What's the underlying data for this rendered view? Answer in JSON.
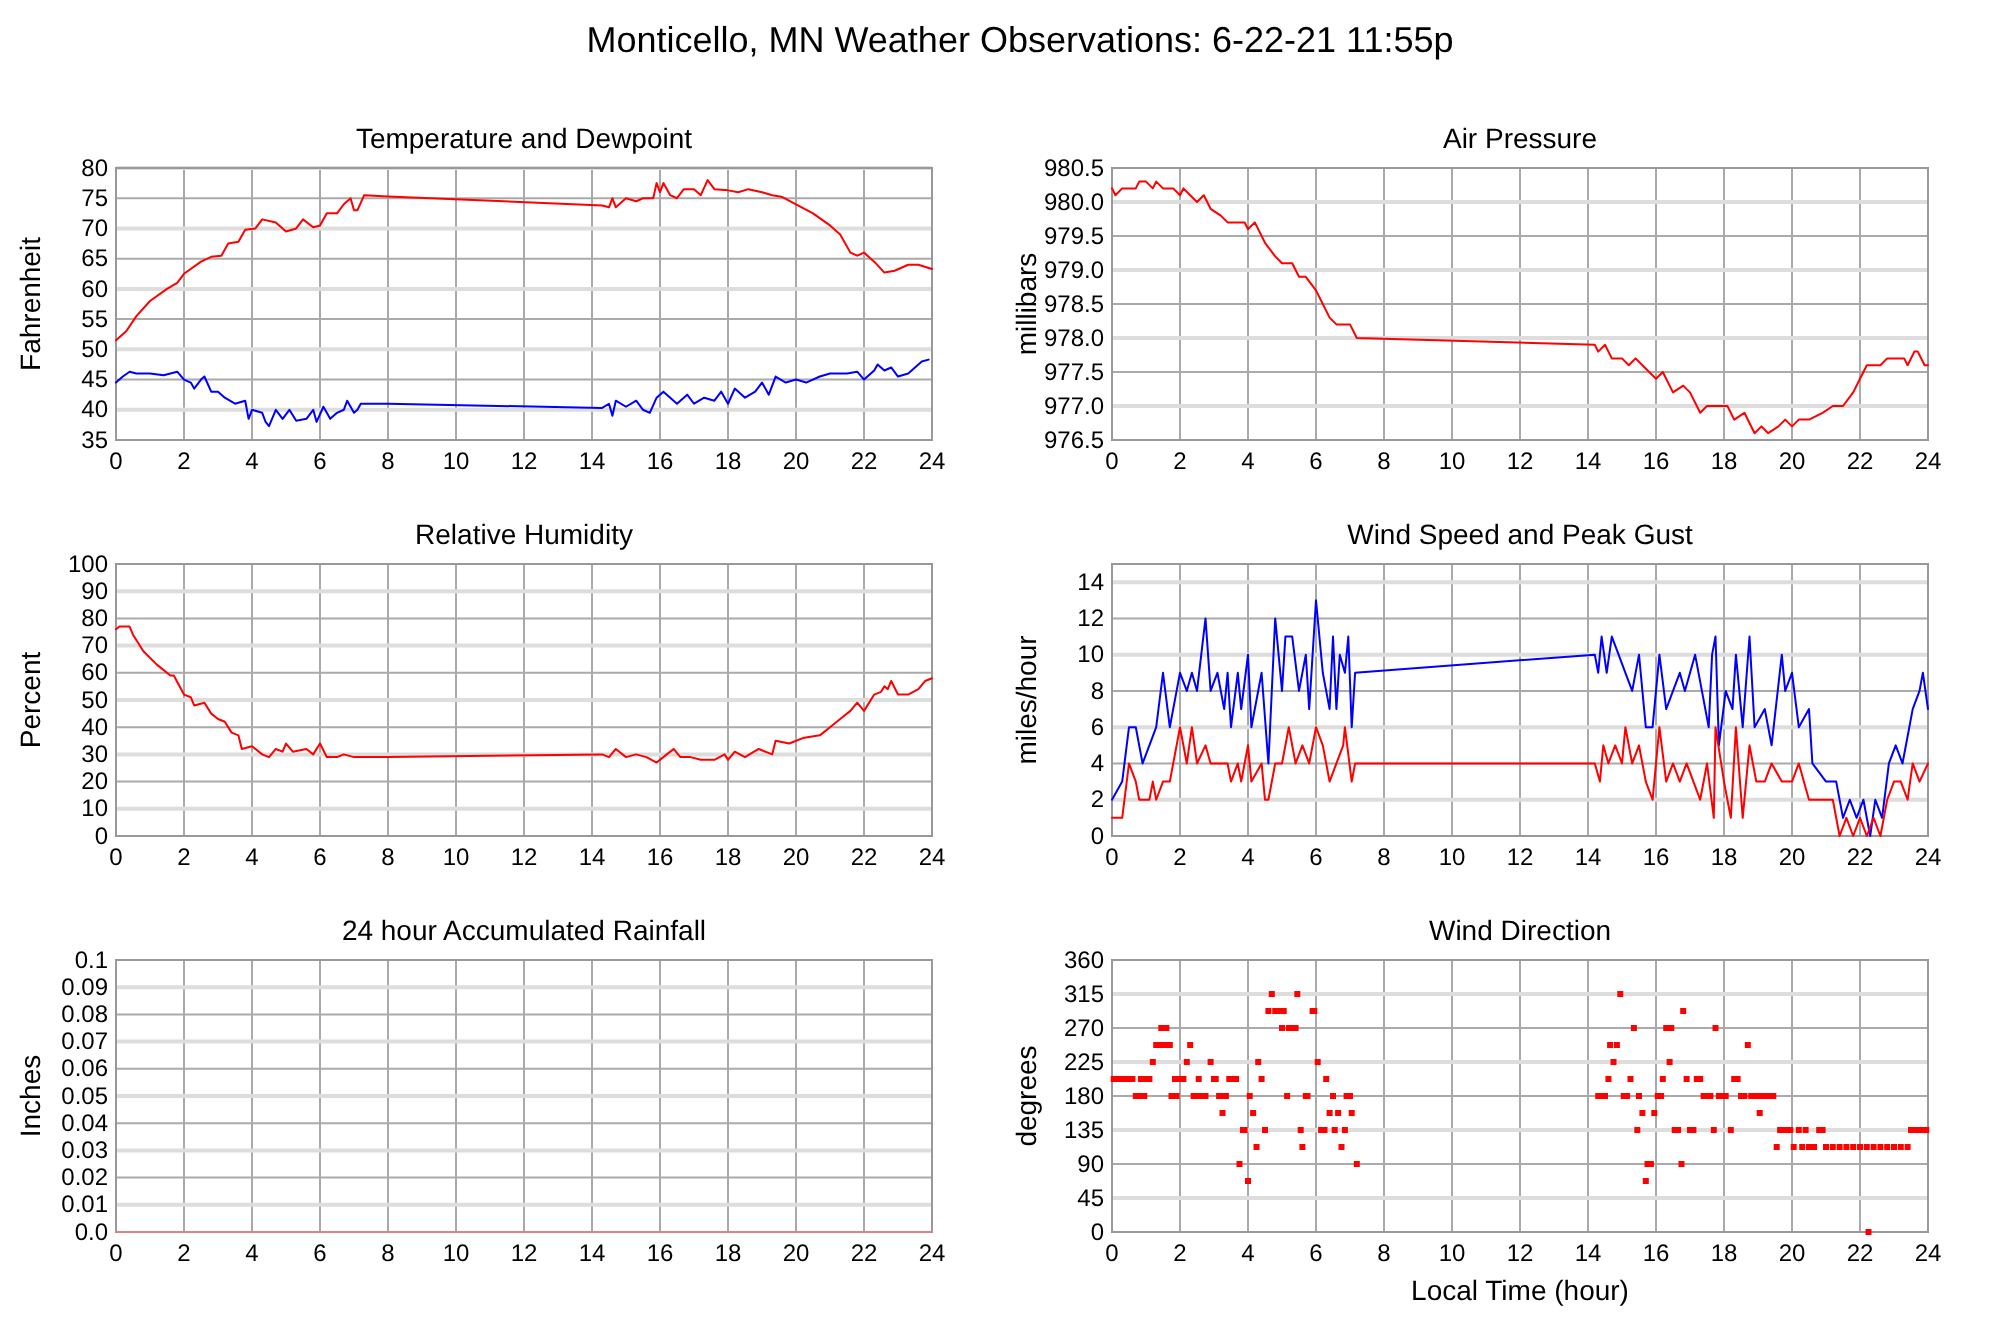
{
  "chart_data": [
    {
      "type": "line",
      "title": "Temperature and Dewpoint",
      "ylabel": "Fahrenheit",
      "annotations": [
        "Monticello, MN Weather Observations: 6-22-21 11:55p"
      ],
      "xlim": [
        0,
        24
      ],
      "xticks": [
        0,
        2,
        4,
        6,
        8,
        10,
        12,
        14,
        16,
        18,
        20,
        22,
        24
      ],
      "ylim": [
        35,
        80
      ],
      "yticks": [
        35,
        40,
        45,
        50,
        55,
        60,
        65,
        70,
        75,
        80
      ],
      "grid": true,
      "series": [
        {
          "color": "#ff0000",
          "x": [
            0,
            0.3,
            0.6,
            1,
            1.5,
            1.8,
            2,
            2.5,
            2.8,
            3.1,
            3.3,
            3.6,
            3.8,
            4.1,
            4.3,
            4.7,
            5,
            5.3,
            5.5,
            5.8,
            6,
            6.2,
            6.5,
            6.7,
            6.9,
            7,
            7.1,
            7.3,
            8,
            14.3,
            14.5,
            14.6,
            14.7,
            15,
            15.3,
            15.5,
            15.8,
            15.9,
            16,
            16.1,
            16.3,
            16.5,
            16.7,
            17,
            17.2,
            17.4,
            17.6,
            18,
            18.3,
            18.6,
            19,
            19.3,
            19.6,
            20,
            20.5,
            21,
            21.3,
            21.6,
            21.8,
            22,
            22.3,
            22.6,
            22.9,
            23.3,
            23.6,
            24
          ],
          "values": [
            51.5,
            53,
            55.5,
            58,
            60,
            61,
            62.5,
            64.5,
            65.3,
            65.5,
            67.5,
            67.8,
            69.8,
            70,
            71.5,
            71,
            69.5,
            70,
            71.5,
            70.2,
            70.5,
            72.5,
            72.5,
            74,
            75,
            73,
            73,
            75.5,
            75.3,
            73.8,
            73.5,
            75,
            73.5,
            75,
            74.5,
            75,
            75,
            77.5,
            76,
            77.5,
            75.5,
            75,
            76.5,
            76.5,
            75.5,
            78,
            76.5,
            76.3,
            76,
            76.5,
            76,
            75.5,
            75.2,
            74,
            72.5,
            70.5,
            69,
            66,
            65.5,
            66,
            64.5,
            62.7,
            63,
            64,
            64,
            63.3
          ]
        },
        {
          "color": "#0000ff",
          "x": [
            0,
            0.2,
            0.4,
            0.6,
            1,
            1.4,
            1.8,
            2,
            2.2,
            2.3,
            2.5,
            2.6,
            2.8,
            3,
            3.2,
            3.5,
            3.8,
            3.9,
            4,
            4.3,
            4.4,
            4.5,
            4.7,
            4.9,
            5.1,
            5.3,
            5.6,
            5.8,
            5.9,
            6.1,
            6.3,
            6.5,
            6.7,
            6.8,
            7,
            7.1,
            7.2,
            8,
            14.3,
            14.5,
            14.6,
            14.7,
            15,
            15.3,
            15.5,
            15.7,
            15.9,
            16.1,
            16.3,
            16.5,
            16.8,
            17,
            17.3,
            17.6,
            17.8,
            18,
            18.2,
            18.5,
            18.8,
            19,
            19.2,
            19.4,
            19.7,
            20,
            20.3,
            20.7,
            21,
            21.5,
            21.8,
            22,
            22.3,
            22.4,
            22.6,
            22.8,
            23,
            23.3,
            23.7,
            23.9
          ],
          "values": [
            44.5,
            45.5,
            46.3,
            46,
            46,
            45.7,
            46.3,
            45,
            44.5,
            43.5,
            45,
            45.5,
            43,
            43,
            42,
            41,
            41.5,
            38.5,
            40,
            39.5,
            38,
            37.3,
            40,
            38.5,
            40,
            38.2,
            38.5,
            40,
            38,
            40.5,
            38.5,
            39.5,
            40,
            41.5,
            39.5,
            40,
            41,
            41,
            40.3,
            41,
            39,
            41.5,
            40.5,
            41.5,
            40,
            39.5,
            42,
            43,
            42,
            41,
            42.5,
            41,
            42,
            41.5,
            43,
            41,
            43.5,
            42,
            43,
            44.5,
            42.5,
            45.5,
            44.5,
            45,
            44.5,
            45.5,
            46,
            46,
            46.3,
            45,
            46.5,
            47.5,
            46.5,
            47,
            45.5,
            46,
            48,
            48.3
          ]
        }
      ]
    },
    {
      "type": "line",
      "title": "Air Pressure",
      "ylabel": "millibars",
      "xlim": [
        0,
        24
      ],
      "xticks": [
        0,
        2,
        4,
        6,
        8,
        10,
        12,
        14,
        16,
        18,
        20,
        22,
        24
      ],
      "ylim": [
        976.5,
        980.5
      ],
      "yticks": [
        {
          "value": 976.5,
          "label": "976.5"
        },
        {
          "value": 977,
          "label": "977.0"
        },
        {
          "value": 977.5,
          "label": "977.5"
        },
        {
          "value": 978,
          "label": "978.0"
        },
        {
          "value": 978.5,
          "label": "978.5"
        },
        {
          "value": 979,
          "label": "979.0"
        },
        {
          "value": 979.5,
          "label": "979.5"
        },
        {
          "value": 980,
          "label": "980.0"
        },
        {
          "value": 980.5,
          "label": "980.5"
        }
      ],
      "grid": true,
      "series": [
        {
          "color": "#ff0000",
          "x": [
            0,
            0.1,
            0.3,
            0.7,
            0.8,
            1,
            1.2,
            1.3,
            1.5,
            1.8,
            2,
            2.1,
            2.3,
            2.5,
            2.7,
            2.9,
            3.2,
            3.4,
            3.9,
            4,
            4.2,
            4.5,
            4.8,
            5,
            5.3,
            5.5,
            5.7,
            6,
            6.2,
            6.4,
            6.6,
            7,
            7.2,
            14.2,
            14.3,
            14.5,
            14.7,
            15,
            15.2,
            15.4,
            15.6,
            15.8,
            16,
            16.2,
            16.5,
            16.8,
            17,
            17.3,
            17.5,
            18.1,
            18.3,
            18.6,
            18.9,
            19.1,
            19.3,
            19.6,
            19.8,
            20,
            20.2,
            20.5,
            20.9,
            21.2,
            21.5,
            21.8,
            22,
            22.2,
            22.6,
            22.8,
            23.3,
            23.4,
            23.6,
            23.7,
            23.9,
            24
          ],
          "values": [
            980.2,
            980.1,
            980.2,
            980.2,
            980.3,
            980.3,
            980.2,
            980.3,
            980.2,
            980.2,
            980.1,
            980.2,
            980.1,
            980,
            980.1,
            979.9,
            979.8,
            979.7,
            979.7,
            979.6,
            979.7,
            979.4,
            979.2,
            979.1,
            979.1,
            978.9,
            978.9,
            978.7,
            978.5,
            978.3,
            978.2,
            978.2,
            978,
            977.9,
            977.8,
            977.9,
            977.7,
            977.7,
            977.6,
            977.7,
            977.6,
            977.5,
            977.4,
            977.5,
            977.2,
            977.3,
            977.2,
            976.9,
            977,
            977,
            976.8,
            976.9,
            976.6,
            976.7,
            976.6,
            976.7,
            976.8,
            976.7,
            976.8,
            976.8,
            976.9,
            977,
            977,
            977.2,
            977.4,
            977.6,
            977.6,
            977.7,
            977.7,
            977.6,
            977.8,
            977.8,
            977.6,
            977.6
          ]
        }
      ]
    },
    {
      "type": "line",
      "title": "Relative Humidity",
      "ylabel": "Percent",
      "xlim": [
        0,
        24
      ],
      "xticks": [
        0,
        2,
        4,
        6,
        8,
        10,
        12,
        14,
        16,
        18,
        20,
        22,
        24
      ],
      "ylim": [
        0,
        100
      ],
      "yticks": [
        0,
        10,
        20,
        30,
        40,
        50,
        60,
        70,
        80,
        90,
        100
      ],
      "grid": true,
      "series": [
        {
          "color": "#ff0000",
          "x": [
            0,
            0.1,
            0.4,
            0.5,
            0.8,
            1.2,
            1.6,
            1.7,
            2,
            2.2,
            2.3,
            2.6,
            2.8,
            3,
            3.2,
            3.4,
            3.6,
            3.7,
            4,
            4.3,
            4.5,
            4.7,
            4.9,
            5,
            5.2,
            5.6,
            5.8,
            6,
            6.2,
            6.5,
            6.7,
            7,
            8,
            14.3,
            14.5,
            14.7,
            15,
            15.3,
            15.6,
            15.9,
            16.2,
            16.4,
            16.6,
            16.9,
            17.2,
            17.6,
            17.9,
            18,
            18.2,
            18.5,
            18.9,
            19.3,
            19.4,
            19.8,
            20.2,
            20.7,
            21,
            21.4,
            21.6,
            21.8,
            22,
            22.3,
            22.5,
            22.6,
            22.7,
            22.8,
            23,
            23.3,
            23.6,
            23.8,
            24
          ],
          "values": [
            76,
            77,
            77,
            74,
            68,
            63,
            59,
            59,
            52,
            51,
            48,
            49,
            45,
            43,
            42,
            38,
            37,
            32,
            33,
            30,
            29,
            32,
            31,
            34,
            31,
            32,
            30,
            34,
            29,
            29,
            30,
            29,
            29,
            30,
            29,
            32,
            29,
            30,
            29,
            27,
            30,
            32,
            29,
            29,
            28,
            28,
            30,
            28,
            31,
            29,
            32,
            30,
            35,
            34,
            36,
            37,
            40,
            44,
            46,
            49,
            46,
            52,
            53,
            55,
            54,
            57,
            52,
            52,
            54,
            57,
            58
          ]
        }
      ]
    },
    {
      "type": "line",
      "title": "Wind Speed and Peak Gust",
      "ylabel": "miles/hour",
      "xlim": [
        0,
        24
      ],
      "xticks": [
        0,
        2,
        4,
        6,
        8,
        10,
        12,
        14,
        16,
        18,
        20,
        22,
        24
      ],
      "ylim": [
        0,
        15
      ],
      "yticks": [
        0,
        2,
        4,
        6,
        8,
        10,
        12,
        14
      ],
      "grid": true,
      "series": [
        {
          "color": "#0000ff",
          "x": [
            0,
            0.3,
            0.5,
            0.7,
            0.9,
            1.1,
            1.3,
            1.5,
            1.7,
            1.9,
            2,
            2.2,
            2.35,
            2.5,
            2.75,
            2.9,
            3.1,
            3.3,
            3.4,
            3.5,
            3.7,
            3.8,
            4,
            4.1,
            4.4,
            4.6,
            4.8,
            5,
            5.1,
            5.3,
            5.5,
            5.7,
            5.8,
            6,
            6.2,
            6.4,
            6.5,
            6.6,
            6.7,
            6.85,
            6.95,
            7.05,
            7.15,
            14.2,
            14.3,
            14.4,
            14.55,
            14.7,
            14.9,
            15.1,
            15.3,
            15.5,
            15.7,
            15.9,
            16.1,
            16.3,
            16.5,
            16.7,
            16.85,
            17.15,
            17.35,
            17.55,
            17.65,
            17.75,
            17.85,
            18.05,
            18.25,
            18.35,
            18.55,
            18.75,
            18.9,
            19.2,
            19.4,
            19.7,
            19.8,
            20,
            20.2,
            20.5,
            20.6,
            21,
            21.3,
            21.5,
            21.7,
            21.9,
            22.1,
            22.3,
            22.45,
            22.65,
            22.85,
            23.05,
            23.25,
            23.45,
            23.55,
            23.75,
            23.85,
            24
          ],
          "values": [
            2,
            3,
            6,
            6,
            4,
            5,
            6,
            9,
            6,
            8,
            9,
            8,
            9,
            8,
            12,
            8,
            9,
            7,
            9,
            6,
            9,
            7,
            10,
            6,
            9,
            4,
            12,
            8,
            11,
            11,
            8,
            10,
            7,
            13,
            9,
            7,
            11,
            7,
            10,
            9,
            11,
            6,
            9,
            10,
            9,
            11,
            9,
            11,
            10,
            9,
            8,
            10,
            6,
            6,
            10,
            7,
            8,
            9,
            8,
            10,
            8,
            6,
            10,
            11,
            5,
            8,
            7,
            10,
            6,
            11,
            6,
            7,
            5,
            10,
            8,
            9,
            6,
            7,
            4,
            3,
            3,
            1,
            2,
            1,
            2,
            0,
            2,
            1,
            4,
            5,
            4,
            6,
            7,
            8,
            9,
            7
          ]
        },
        {
          "color": "#ff0000",
          "x": [
            0,
            0.3,
            0.5,
            0.7,
            0.8,
            1.1,
            1.2,
            1.3,
            1.5,
            1.7,
            1.9,
            2,
            2.2,
            2.35,
            2.5,
            2.75,
            2.9,
            3.4,
            3.5,
            3.7,
            3.8,
            4,
            4.1,
            4.4,
            4.5,
            4.6,
            4.8,
            5,
            5.2,
            5.4,
            5.6,
            5.8,
            6,
            6.2,
            6.4,
            6.6,
            6.8,
            6.85,
            7.05,
            7.15,
            14.2,
            14.35,
            14.45,
            14.6,
            14.8,
            15,
            15.1,
            15.3,
            15.5,
            15.7,
            15.9,
            16.1,
            16.3,
            16.5,
            16.7,
            16.9,
            17.1,
            17.3,
            17.5,
            17.7,
            17.75,
            18,
            18.2,
            18.35,
            18.55,
            18.75,
            18.95,
            19.2,
            19.4,
            19.7,
            20,
            20.2,
            20.5,
            21.2,
            21.4,
            21.6,
            21.8,
            22,
            22.2,
            22.4,
            22.6,
            22.8,
            23,
            23.2,
            23.4,
            23.55,
            23.75,
            24
          ],
          "values": [
            1,
            1,
            4,
            3,
            2,
            2,
            3,
            2,
            3,
            3,
            5,
            6,
            4,
            6,
            4,
            5,
            4,
            4,
            3,
            4,
            3,
            5,
            3,
            4,
            2,
            2,
            4,
            4,
            6,
            4,
            5,
            4,
            6,
            5,
            3,
            4,
            5,
            6,
            3,
            4,
            4,
            3,
            5,
            4,
            5,
            4,
            6,
            4,
            5,
            3,
            2,
            6,
            3,
            4,
            3,
            4,
            3,
            2,
            4,
            1,
            6,
            3,
            1,
            6,
            1,
            5,
            3,
            3,
            4,
            3,
            3,
            4,
            2,
            2,
            0,
            1,
            0,
            1,
            0,
            1,
            0,
            2,
            3,
            3,
            2,
            4,
            3,
            4
          ]
        }
      ]
    },
    {
      "type": "line",
      "title": "24 hour Accumulated Rainfall",
      "ylabel": "Inches",
      "xlim": [
        0,
        24
      ],
      "xticks": [
        0,
        2,
        4,
        6,
        8,
        10,
        12,
        14,
        16,
        18,
        20,
        22,
        24
      ],
      "ylim": [
        0,
        0.1
      ],
      "yticks": [
        {
          "value": 0,
          "label": "0.0"
        },
        0.01,
        0.02,
        0.03,
        0.04,
        0.05,
        0.06,
        0.07,
        0.08,
        0.09,
        0.1
      ],
      "grid": true,
      "series": [
        {
          "color": "#e08080",
          "x": [
            0,
            24
          ],
          "values": [
            0,
            0
          ]
        }
      ]
    },
    {
      "type": "scatter",
      "title": "Wind Direction",
      "ylabel": "degrees",
      "xlabel": "Local Time (hour)",
      "marker": "square",
      "xlim": [
        0,
        24
      ],
      "xticks": [
        0,
        2,
        4,
        6,
        8,
        10,
        12,
        14,
        16,
        18,
        20,
        22,
        24
      ],
      "ylim": [
        0,
        360
      ],
      "yticks": [
        0,
        45,
        90,
        135,
        180,
        225,
        270,
        315,
        360
      ],
      "grid": true,
      "series": [
        {
          "color": "#ff0000",
          "x": [
            0.05,
            0.2,
            0.35,
            0.5,
            0.6,
            0.7,
            0.8,
            0.85,
            0.95,
            1,
            1.1,
            1.2,
            1.3,
            1.4,
            1.45,
            1.55,
            1.6,
            1.7,
            1.75,
            1.85,
            1.9,
            2,
            2.1,
            2.2,
            2.3,
            2.4,
            2.5,
            2.55,
            2.65,
            2.75,
            2.9,
            3,
            3.05,
            3.15,
            3.2,
            3.25,
            3.35,
            3.45,
            3.55,
            3.65,
            3.75,
            3.85,
            3.9,
            4,
            4.05,
            4.15,
            4.25,
            4.3,
            4.4,
            4.5,
            4.6,
            4.7,
            4.8,
            4.9,
            5,
            5.05,
            5.15,
            5.2,
            5.3,
            5.4,
            5.45,
            5.55,
            5.6,
            5.7,
            5.75,
            5.9,
            5.95,
            6.05,
            6.15,
            6.25,
            6.3,
            6.4,
            6.5,
            6.55,
            6.65,
            6.75,
            6.85,
            6.9,
            7,
            7.05,
            7.2,
            14.3,
            14.4,
            14.5,
            14.6,
            14.65,
            14.75,
            14.85,
            14.95,
            15.05,
            15.15,
            15.25,
            15.35,
            15.45,
            15.5,
            15.6,
            15.7,
            15.75,
            15.85,
            15.95,
            16.05,
            16.15,
            16.2,
            16.3,
            16.4,
            16.45,
            16.55,
            16.65,
            16.75,
            16.8,
            16.9,
            17,
            17.1,
            17.2,
            17.3,
            17.4,
            17.5,
            17.6,
            17.7,
            17.75,
            17.85,
            17.95,
            18.05,
            18.2,
            18.3,
            18.4,
            18.5,
            18.6,
            18.7,
            18.8,
            18.9,
            19,
            19.05,
            19.15,
            19.3,
            19.45,
            19.55,
            19.65,
            19.8,
            19.95,
            20.05,
            20.2,
            20.3,
            20.4,
            20.5,
            20.65,
            20.8,
            20.9,
            21,
            21.2,
            21.4,
            21.6,
            21.8,
            22,
            22.2,
            22.25,
            22.4,
            22.6,
            22.8,
            23,
            23.2,
            23.4,
            23.5,
            23.65,
            23.8,
            23.95
          ],
          "values": [
            202.5,
            202.5,
            202.5,
            202.5,
            202.5,
            180,
            180,
            202.5,
            180,
            202.5,
            202.5,
            225,
            247.5,
            247.5,
            270,
            247.5,
            270,
            247.5,
            180,
            202.5,
            180,
            202.5,
            202.5,
            225,
            247.5,
            180,
            180,
            202.5,
            180,
            180,
            225,
            202.5,
            202.5,
            180,
            180,
            157.5,
            180,
            202.5,
            202.5,
            202.5,
            90,
            135,
            135,
            67.5,
            180,
            157.5,
            112.5,
            225,
            202.5,
            135,
            292.5,
            315,
            292.5,
            292.5,
            270,
            292.5,
            180,
            270,
            270,
            270,
            315,
            135,
            112.5,
            180,
            180,
            292.5,
            292.5,
            225,
            135,
            135,
            202.5,
            157.5,
            180,
            135,
            157.5,
            112.5,
            135,
            180,
            180,
            157.5,
            90,
            180,
            180,
            180,
            202.5,
            247.5,
            225,
            247.5,
            315,
            180,
            180,
            202.5,
            270,
            135,
            180,
            157.5,
            67.5,
            90,
            90,
            157.5,
            180,
            180,
            202.5,
            270,
            225,
            270,
            135,
            135,
            90,
            292.5,
            202.5,
            135,
            135,
            202.5,
            202.5,
            180,
            180,
            180,
            135,
            270,
            180,
            180,
            180,
            135,
            202.5,
            202.5,
            180,
            180,
            247.5,
            180,
            180,
            180,
            157.5,
            180,
            180,
            180,
            112.5,
            135,
            135,
            135,
            112.5,
            135,
            112.5,
            135,
            112.5,
            112.5,
            135,
            135,
            112.5,
            112.5,
            112.5,
            112.5,
            112.5,
            112.5,
            112.5,
            0,
            112.5,
            112.5,
            112.5,
            112.5,
            112.5,
            112.5,
            135,
            135,
            135,
            135
          ]
        }
      ]
    }
  ]
}
